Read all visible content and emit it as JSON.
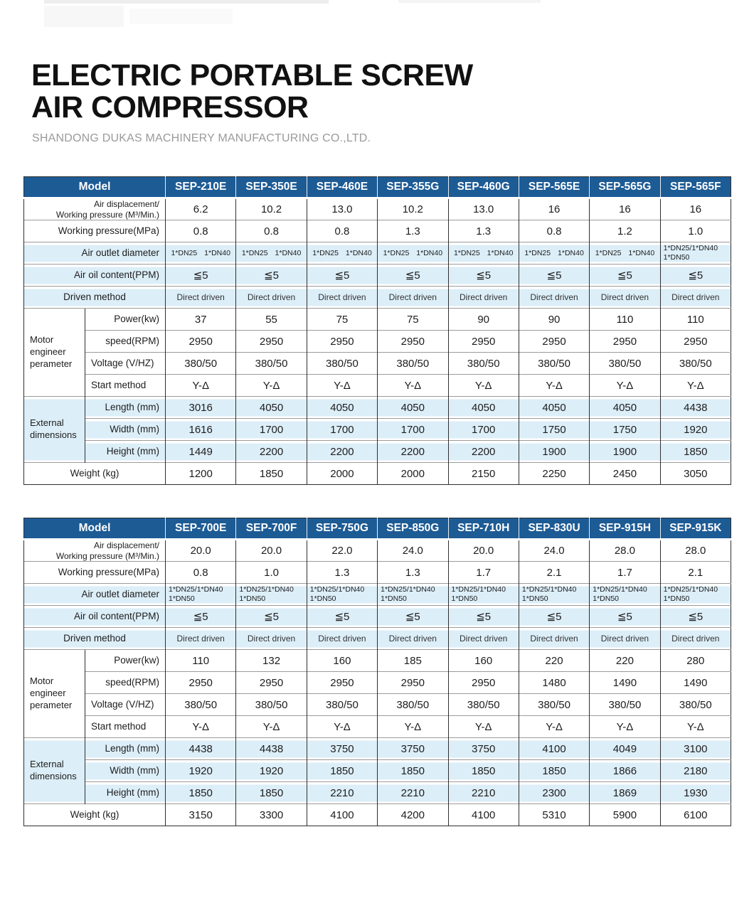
{
  "page": {
    "title": "ELECTRIC PORTABLE SCREW\nAIR COMPRESSOR",
    "subtitle": "SHANDONG DUKAS MACHINERY MANUFACTURING CO.,LTD."
  },
  "colors": {
    "header_bg": "#1d5b95",
    "band_bg": "#dceef8",
    "grid_dark": "#2f2f2f",
    "grid_light": "#9b9b9b",
    "title_color": "#111111",
    "subtitle_color": "#9a9a9a"
  },
  "row_defs": [
    {
      "id": "air-displacement",
      "label": "Air displacement/\nWorking pressure (M³/Min.)",
      "align": "right",
      "band": false,
      "label_class": "two-line",
      "cell_class": "val"
    },
    {
      "id": "working-pressure",
      "label": "Working pressure(MPa)",
      "align": "right",
      "band": false,
      "cell_class": "val"
    },
    {
      "id": "air-outlet-diameter",
      "label": "Air outlet diameter",
      "align": "right",
      "band": true,
      "cell_class": "dn"
    },
    {
      "id": "air-oil-content",
      "label": "Air oil content(PPM)",
      "align": "right",
      "band": true,
      "cell_class": "oil"
    },
    {
      "id": "driven-method",
      "label": "Driven method",
      "align": "center",
      "band": true,
      "cell_class": "small"
    },
    {
      "id": "power",
      "label": "Power(kw)",
      "align": "right",
      "band": false,
      "cell_class": "val",
      "group": {
        "id": "motor",
        "label": "Motor\nengineer\nperameter",
        "span": 4
      }
    },
    {
      "id": "speed",
      "label": "speed(RPM)",
      "align": "right",
      "band": false,
      "cell_class": "val"
    },
    {
      "id": "voltage",
      "label": "Voltage (V/HZ)",
      "align": "left",
      "band": false,
      "cell_class": "val"
    },
    {
      "id": "start-method",
      "label": "Start method",
      "align": "left",
      "band": false,
      "cell_class": "val"
    },
    {
      "id": "length",
      "label": "Length (mm)",
      "align": "right",
      "band": true,
      "cell_class": "val",
      "group": {
        "id": "external",
        "label": "External\ndimensions",
        "span": 3
      }
    },
    {
      "id": "width",
      "label": "Width (mm)",
      "align": "right",
      "band": true,
      "cell_class": "val"
    },
    {
      "id": "height",
      "label": "Height (mm)",
      "align": "right",
      "band": true,
      "cell_class": "val"
    },
    {
      "id": "weight",
      "label": "Weight (kg)",
      "align": "center",
      "band": false,
      "cell_class": "val"
    }
  ],
  "tables": [
    {
      "name": "spec-table-1",
      "model_header": "Model",
      "models": [
        "SEP-210E",
        "SEP-350E",
        "SEP-460E",
        "SEP-355G",
        "SEP-460G",
        "SEP-565E",
        "SEP-565G",
        "SEP-565F"
      ],
      "cells": {
        "air-displacement": [
          "6.2",
          "10.2",
          "13.0",
          "10.2",
          "13.0",
          "16",
          "16",
          "16"
        ],
        "working-pressure": [
          "0.8",
          "0.8",
          "0.8",
          "1.3",
          "1.3",
          "0.8",
          "1.2",
          "1.0"
        ],
        "air-outlet-diameter": [
          "1*DN25 1*DN40",
          "1*DN25 1*DN40",
          "1*DN25 1*DN40",
          "1*DN25 1*DN40",
          "1*DN25 1*DN40",
          "1*DN25 1*DN40",
          "1*DN25 1*DN40",
          "1*DN25/1*DN40\n1*DN50"
        ],
        "air-oil-content": [
          "≦5",
          "≦5",
          "≦5",
          "≦5",
          "≦5",
          "≦5",
          "≦5",
          "≦5"
        ],
        "driven-method": [
          "Direct driven",
          "Direct driven",
          "Direct driven",
          "Direct driven",
          "Direct driven",
          "Direct driven",
          "Direct driven",
          "Direct driven"
        ],
        "power": [
          "37",
          "55",
          "75",
          "75",
          "90",
          "90",
          "110",
          "110"
        ],
        "speed": [
          "2950",
          "2950",
          "2950",
          "2950",
          "2950",
          "2950",
          "2950",
          "2950"
        ],
        "voltage": [
          "380/50",
          "380/50",
          "380/50",
          "380/50",
          "380/50",
          "380/50",
          "380/50",
          "380/50"
        ],
        "start-method": [
          "Y-Δ",
          "Y-Δ",
          "Y-Δ",
          "Y-Δ",
          "Y-Δ",
          "Y-Δ",
          "Y-Δ",
          "Y-Δ"
        ],
        "length": [
          "3016",
          "4050",
          "4050",
          "4050",
          "4050",
          "4050",
          "4050",
          "4438"
        ],
        "width": [
          "1616",
          "1700",
          "1700",
          "1700",
          "1700",
          "1750",
          "1750",
          "1920"
        ],
        "height": [
          "1449",
          "2200",
          "2200",
          "2200",
          "2200",
          "1900",
          "1900",
          "1850"
        ],
        "weight": [
          "1200",
          "1850",
          "2000",
          "2000",
          "2150",
          "2250",
          "2450",
          "3050"
        ]
      }
    },
    {
      "name": "spec-table-2",
      "model_header": "Model",
      "models": [
        "SEP-700E",
        "SEP-700F",
        "SEP-750G",
        "SEP-850G",
        "SEP-710H",
        "SEP-830U",
        "SEP-915H",
        "SEP-915K"
      ],
      "cells": {
        "air-displacement": [
          "20.0",
          "20.0",
          "22.0",
          "24.0",
          "20.0",
          "24.0",
          "28.0",
          "28.0"
        ],
        "working-pressure": [
          "0.8",
          "1.0",
          "1.3",
          "1.3",
          "1.7",
          "2.1",
          "1.7",
          "2.1"
        ],
        "air-outlet-diameter": [
          "1*DN25/1*DN40\n1*DN50",
          "1*DN25/1*DN40\n1*DN50",
          "1*DN25/1*DN40\n1*DN50",
          "1*DN25/1*DN40\n1*DN50",
          "1*DN25/1*DN40\n1*DN50",
          "1*DN25/1*DN40\n1*DN50",
          "1*DN25/1*DN40\n1*DN50",
          "1*DN25/1*DN40\n1*DN50"
        ],
        "air-oil-content": [
          "≦5",
          "≦5",
          "≦5",
          "≦5",
          "≦5",
          "≦5",
          "≦5",
          "≦5"
        ],
        "driven-method": [
          "Direct driven",
          "Direct driven",
          "Direct driven",
          "Direct driven",
          "Direct driven",
          "Direct driven",
          "Direct driven",
          "Direct driven"
        ],
        "power": [
          "110",
          "132",
          "160",
          "185",
          "160",
          "220",
          "220",
          "280"
        ],
        "speed": [
          "2950",
          "2950",
          "2950",
          "2950",
          "2950",
          "1480",
          "1490",
          "1490"
        ],
        "voltage": [
          "380/50",
          "380/50",
          "380/50",
          "380/50",
          "380/50",
          "380/50",
          "380/50",
          "380/50"
        ],
        "start-method": [
          "Y-Δ",
          "Y-Δ",
          "Y-Δ",
          "Y-Δ",
          "Y-Δ",
          "Y-Δ",
          "Y-Δ",
          "Y-Δ"
        ],
        "length": [
          "4438",
          "4438",
          "3750",
          "3750",
          "3750",
          "4100",
          "4049",
          "3100"
        ],
        "width": [
          "1920",
          "1920",
          "1850",
          "1850",
          "1850",
          "1850",
          "1866",
          "2180"
        ],
        "height": [
          "1850",
          "1850",
          "2210",
          "2210",
          "2210",
          "2300",
          "1869",
          "1930"
        ],
        "weight": [
          "3150",
          "3300",
          "4100",
          "4200",
          "4100",
          "5310",
          "5900",
          "6100"
        ]
      }
    }
  ]
}
